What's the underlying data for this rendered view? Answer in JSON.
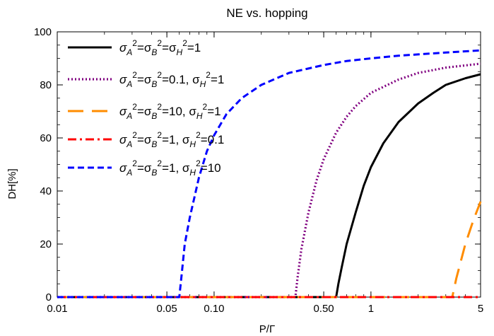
{
  "chart_data": {
    "type": "line",
    "title": "NE vs. hopping",
    "xlabel": "P/Γ",
    "ylabel": "DH[%]",
    "xscale": "log",
    "xlim": [
      0.01,
      5
    ],
    "ylim": [
      0,
      100
    ],
    "xticks": [
      {
        "value": 0.01,
        "label": "0.01"
      },
      {
        "value": 0.05,
        "label": "0.05"
      },
      {
        "value": 0.1,
        "label": "0.10"
      },
      {
        "value": 0.5,
        "label": "0.50"
      },
      {
        "value": 1,
        "label": "1"
      },
      {
        "value": 5,
        "label": "5"
      }
    ],
    "yticks": [
      {
        "value": 0,
        "label": "0"
      },
      {
        "value": 20,
        "label": "20"
      },
      {
        "value": 40,
        "label": "40"
      },
      {
        "value": 60,
        "label": "60"
      },
      {
        "value": 80,
        "label": "80"
      },
      {
        "value": 100,
        "label": "100"
      }
    ],
    "legend_position": "top-left",
    "series": [
      {
        "name": "σA²=σB²=σH²=1",
        "legend_label": {
          "a": "σ",
          "a_sub": "A",
          "b": "σ",
          "b_sub": "B",
          "h": "σ",
          "h_sub": "H",
          "ab_val": "1",
          "h_val": "",
          "combined": true
        },
        "color": "#000000",
        "dash": "solid",
        "x": [
          0.01,
          0.6,
          0.62,
          0.65,
          0.7,
          0.8,
          0.9,
          1.0,
          1.2,
          1.5,
          2.0,
          2.5,
          3.0,
          4.0,
          5.0
        ],
        "y": [
          0,
          0,
          5,
          11,
          20,
          32,
          42,
          49,
          58,
          66,
          73,
          77,
          80,
          82.5,
          84
        ]
      },
      {
        "name": "σA²=σB²=0.1, σH²=1",
        "color": "#800080",
        "dash": "dotted",
        "x": [
          0.01,
          0.33,
          0.34,
          0.36,
          0.4,
          0.45,
          0.5,
          0.6,
          0.7,
          0.8,
          1.0,
          1.5,
          2.0,
          3.0,
          5.0
        ],
        "y": [
          0,
          0,
          7,
          18,
          32,
          44,
          52,
          62,
          68,
          72,
          77,
          82,
          84.5,
          86.5,
          88
        ]
      },
      {
        "name": "σA²=σB²=10, σH²=1",
        "color": "#ff8c00",
        "dash": "longdash",
        "x": [
          0.01,
          3.3,
          3.5,
          4.0,
          4.5,
          5.0
        ],
        "y": [
          0,
          0,
          7,
          20,
          29,
          36
        ]
      },
      {
        "name": "σA²=σB²=1,  σH²=0.1",
        "color": "#ff0000",
        "dash": "dashdot",
        "x": [
          0.01,
          5.0
        ],
        "y": [
          0,
          0
        ]
      },
      {
        "name": "σA²=σB²=1,  σH²=10",
        "color": "#0000ff",
        "dash": "dashed",
        "x": [
          0.01,
          0.06,
          0.062,
          0.065,
          0.07,
          0.08,
          0.09,
          0.1,
          0.12,
          0.15,
          0.2,
          0.3,
          0.5,
          0.7,
          1.0,
          1.5,
          2.0,
          3.0,
          5.0
        ],
        "y": [
          0,
          0,
          8,
          20,
          30,
          45,
          55,
          61,
          69,
          75,
          80,
          84.5,
          87.5,
          89,
          90,
          91,
          91.5,
          92.2,
          93
        ]
      }
    ]
  },
  "legend": [
    {
      "parts": [
        "σ",
        "A",
        "2",
        "=σ",
        "B",
        "2",
        "=σ",
        "H",
        "2",
        "=1"
      ]
    },
    {
      "parts": [
        "σ",
        "A",
        "2",
        "=σ",
        "B",
        "2",
        "=0.1, σ",
        "H",
        "2",
        "=1"
      ]
    },
    {
      "parts": [
        "σ",
        "A",
        "2",
        "=σ",
        "B",
        "2",
        "=10, σ",
        "H",
        "2",
        "=1"
      ]
    },
    {
      "parts": [
        "σ",
        "A",
        "2",
        "=σ",
        "B",
        "2",
        "=1,  σ",
        "H",
        "2",
        "=0.1"
      ]
    },
    {
      "parts": [
        "σ",
        "A",
        "2",
        "=σ",
        "B",
        "2",
        "=1,  σ",
        "H",
        "2",
        "=10"
      ]
    }
  ]
}
